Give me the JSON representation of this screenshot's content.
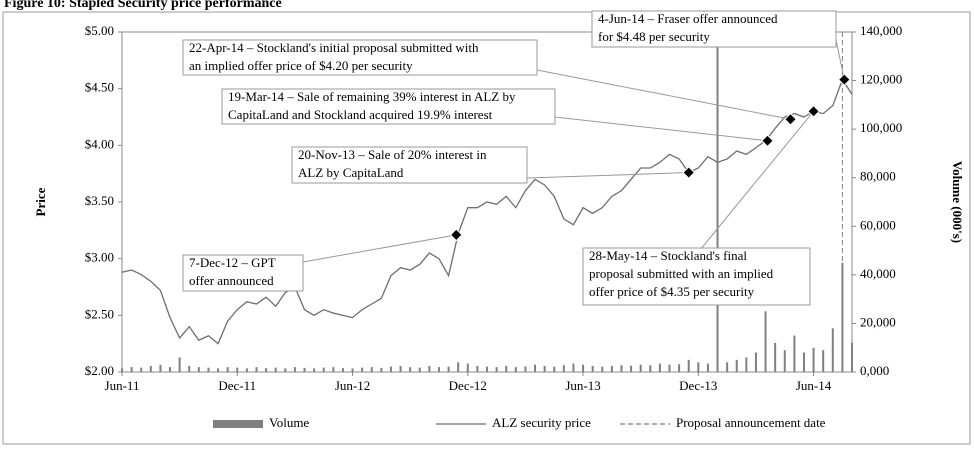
{
  "chart_data": {
    "type": "line",
    "title": "Figure 10: Stapled Security price performance",
    "y_label": "Price",
    "y2_label": "Volume (000's)",
    "xlim": [
      0,
      38
    ],
    "xticks": [
      {
        "value": 0,
        "label": "Jun-11"
      },
      {
        "value": 6,
        "label": "Dec-11"
      },
      {
        "value": 12,
        "label": "Jun-12"
      },
      {
        "value": 18,
        "label": "Dec-12"
      },
      {
        "value": 24,
        "label": "Jun-13"
      },
      {
        "value": 30,
        "label": "Dec-13"
      },
      {
        "value": 36,
        "label": "Jun-14"
      }
    ],
    "ylim": [
      2,
      5
    ],
    "yticks": [
      {
        "value": 2,
        "label": "$2.00"
      },
      {
        "value": 2.5,
        "label": "$2.50"
      },
      {
        "value": 3,
        "label": "$3.00"
      },
      {
        "value": 3.5,
        "label": "$3.50"
      },
      {
        "value": 4,
        "label": "$4.00"
      },
      {
        "value": 4.5,
        "label": "$4.50"
      },
      {
        "value": 5,
        "label": "$5.00"
      }
    ],
    "y2lim": [
      0,
      140000
    ],
    "y2ticks": [
      {
        "value": 0,
        "label": "0,000"
      },
      {
        "value": 20000,
        "label": "20,000"
      },
      {
        "value": 40000,
        "label": "40,000"
      },
      {
        "value": 60000,
        "label": "60,000"
      },
      {
        "value": 80000,
        "label": "80,000"
      },
      {
        "value": 100000,
        "label": "100,000"
      },
      {
        "value": 120000,
        "label": "120,000"
      },
      {
        "value": 140000,
        "label": "140,000"
      }
    ],
    "x": [
      0,
      0.5,
      1,
      1.5,
      2,
      2.5,
      3,
      3.5,
      4,
      4.5,
      5,
      5.5,
      6,
      6.5,
      7,
      7.5,
      8,
      8.5,
      9,
      9.5,
      10,
      10.5,
      11,
      11.5,
      12,
      12.5,
      13,
      13.5,
      14,
      14.5,
      15,
      15.5,
      16,
      16.5,
      17,
      17.5,
      18,
      18.5,
      19,
      19.5,
      20,
      20.5,
      21,
      21.5,
      22,
      22.5,
      23,
      23.5,
      24,
      24.5,
      25,
      25.5,
      26,
      26.5,
      27,
      27.5,
      28,
      28.5,
      29,
      29.5,
      30,
      30.5,
      31,
      31.5,
      32,
      32.5,
      33,
      33.5,
      34,
      34.5,
      35,
      35.5,
      36,
      36.5,
      37,
      37.5,
      38
    ],
    "series": [
      {
        "name": "Volume",
        "color": "#808080",
        "axis": "y2",
        "kind": "bar",
        "values": [
          1500,
          2000,
          1800,
          2500,
          3000,
          2000,
          6000,
          2500,
          2000,
          1800,
          1500,
          2000,
          1800,
          1500,
          2000,
          1600,
          1800,
          1500,
          2000,
          1700,
          1500,
          1800,
          2000,
          1600,
          1500,
          1800,
          2000,
          1700,
          2200,
          2500,
          2000,
          1800,
          2500,
          2000,
          2200,
          4000,
          3500,
          2500,
          2200,
          2000,
          2500,
          2000,
          2300,
          3000,
          2500,
          2200,
          2800,
          3500,
          3000,
          2500,
          2200,
          2500,
          2800,
          2600,
          3000,
          2800,
          3500,
          3000,
          3200,
          5000,
          4000,
          3500,
          140000,
          4000,
          5000,
          6000,
          8000,
          25000,
          12000,
          9000,
          15000,
          8000,
          10000,
          9000,
          18000,
          45000,
          12000
        ]
      },
      {
        "name": "ALZ security price",
        "color": "#6e6e6e",
        "axis": "y",
        "kind": "line",
        "values": [
          2.88,
          2.9,
          2.86,
          2.8,
          2.72,
          2.48,
          2.3,
          2.4,
          2.28,
          2.32,
          2.25,
          2.45,
          2.55,
          2.62,
          2.6,
          2.66,
          2.58,
          2.7,
          2.75,
          2.55,
          2.5,
          2.55,
          2.52,
          2.5,
          2.48,
          2.55,
          2.6,
          2.65,
          2.85,
          2.92,
          2.9,
          2.95,
          3.05,
          3.0,
          2.85,
          3.22,
          3.45,
          3.45,
          3.5,
          3.48,
          3.55,
          3.45,
          3.6,
          3.7,
          3.65,
          3.55,
          3.35,
          3.3,
          3.45,
          3.4,
          3.45,
          3.55,
          3.6,
          3.7,
          3.8,
          3.8,
          3.85,
          3.92,
          3.88,
          3.76,
          3.8,
          3.9,
          3.85,
          3.88,
          3.95,
          3.92,
          3.98,
          4.04,
          4.15,
          4.25,
          4.28,
          4.25,
          4.3,
          4.28,
          4.35,
          4.58,
          4.45
        ]
      },
      {
        "name": "Proposal announcement date",
        "color": "#808080",
        "axis": "y",
        "kind": "vline",
        "x": [
          37.5
        ]
      }
    ],
    "annotations": [
      {
        "lines": [
          "4-Jun-14 – Fraser offer announced",
          "for $4.48 per security"
        ],
        "x": 37.6,
        "y": 4.58
      },
      {
        "lines": [
          "22-Apr-14 – Stockland's initial proposal submitted with",
          "an implied offer price of $4.20 per security"
        ],
        "x": 34.8,
        "y": 4.23
      },
      {
        "lines": [
          "19-Mar-14 – Sale of remaining 39% interest in ALZ by",
          "CapitaLand and Stockland acquired 19.9% interest"
        ],
        "x": 33.6,
        "y": 4.04
      },
      {
        "lines": [
          "20-Nov-13 – Sale of 20% interest in",
          "ALZ by CapitaLand"
        ],
        "x": 29.5,
        "y": 3.76
      },
      {
        "lines": [
          "7-Dec-12 – GPT",
          "offer announced"
        ],
        "x": 17.4,
        "y": 3.21
      },
      {
        "lines": [
          "28-May-14 – Stockland's final",
          "proposal submitted with an implied",
          "offer price of $4.35 per security"
        ],
        "x": 36.0,
        "y": 4.3
      }
    ]
  }
}
